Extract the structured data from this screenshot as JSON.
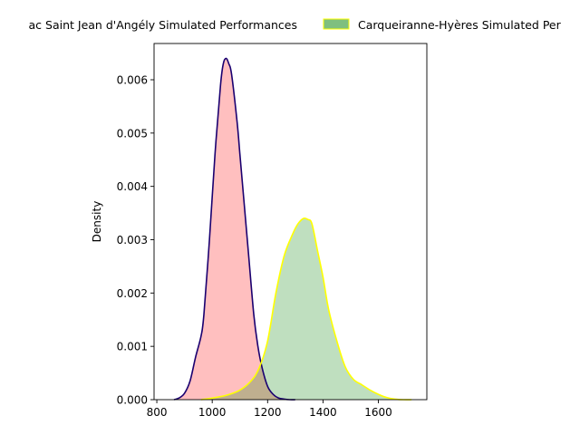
{
  "chart_data": {
    "type": "area",
    "title": "",
    "xlabel": "",
    "ylabel": "Density",
    "xlim": [
      790,
      1775
    ],
    "ylim": [
      0,
      0.00668
    ],
    "x_ticks": [
      800,
      1000,
      1200,
      1400,
      1600
    ],
    "x_tick_labels": [
      "800",
      "1000",
      "1200",
      "1400",
      "1600"
    ],
    "y_ticks": [
      0,
      0.001,
      0.002,
      0.003,
      0.004,
      0.005,
      0.006
    ],
    "y_tick_labels": [
      "0.000",
      "0.001",
      "0.002",
      "0.003",
      "0.004",
      "0.005",
      "0.006"
    ],
    "grid": false,
    "legend_position": "top",
    "series": [
      {
        "name": "Cognac Saint Jean d'Angély Simulated Performances",
        "legend_label_visible": "ac Saint Jean d'Angély Simulated Performances",
        "fill": "#ff0000",
        "fill_opacity": 0.25,
        "line": "#1a0070",
        "x": [
          862,
          880,
          900,
          920,
          940,
          960,
          970,
          990,
          1010,
          1030,
          1040,
          1050,
          1060,
          1070,
          1090,
          1100,
          1110,
          1130,
          1150,
          1165,
          1180,
          1200,
          1220,
          1240,
          1260,
          1280,
          1300
        ],
        "y": [
          0,
          3e-05,
          0.00012,
          0.00035,
          0.0008,
          0.0012,
          0.0016,
          0.003,
          0.0046,
          0.0059,
          0.0063,
          0.0064,
          0.0063,
          0.0061,
          0.0052,
          0.0046,
          0.004,
          0.0028,
          0.0016,
          0.001,
          0.0006,
          0.00025,
          0.0001,
          3e-05,
          1e-05,
          0,
          0
        ]
      },
      {
        "name": "Carqueiranne-Hyères Simulated Performances",
        "legend_label_visible": "Carqueiranne-Hyères Simulated Per",
        "fill": "#008000",
        "fill_opacity": 0.25,
        "line": "#ffff00",
        "x": [
          960,
          1000,
          1050,
          1100,
          1140,
          1170,
          1200,
          1230,
          1260,
          1290,
          1310,
          1330,
          1345,
          1360,
          1380,
          1400,
          1420,
          1450,
          1480,
          1510,
          1540,
          1570,
          1600,
          1630,
          1660,
          1690,
          1720
        ],
        "y": [
          0,
          3e-05,
          8e-05,
          0.00018,
          0.00035,
          0.0006,
          0.0011,
          0.002,
          0.0027,
          0.0031,
          0.0033,
          0.0034,
          0.00338,
          0.0033,
          0.0028,
          0.0023,
          0.0017,
          0.0011,
          0.00062,
          0.00038,
          0.00028,
          0.00018,
          0.0001,
          4e-05,
          1e-05,
          0,
          0
        ]
      }
    ]
  }
}
